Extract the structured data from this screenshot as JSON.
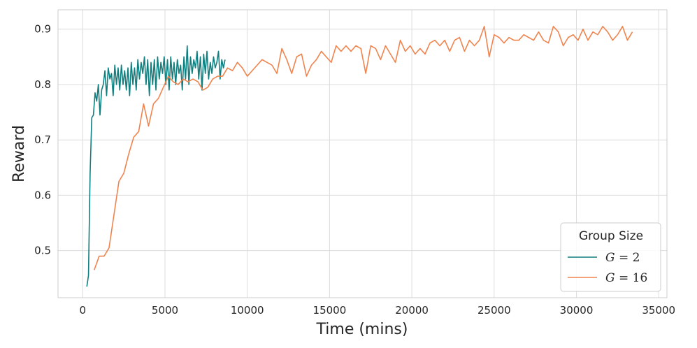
{
  "chart_data": {
    "type": "line",
    "title": "",
    "xlabel": "Time (mins)",
    "ylabel": "Reward",
    "xlim": [
      -1500,
      35500
    ],
    "ylim": [
      0.415,
      0.935
    ],
    "xticks": [
      0,
      5000,
      10000,
      15000,
      20000,
      25000,
      30000,
      35000
    ],
    "xtick_labels": [
      "0",
      "5000",
      "10000",
      "15000",
      "20000",
      "25000",
      "30000",
      "35000"
    ],
    "yticks": [
      0.5,
      0.6,
      0.7,
      0.8,
      0.9
    ],
    "ytick_labels": [
      "0.5",
      "0.6",
      "0.7",
      "0.8",
      "0.9"
    ],
    "grid": true,
    "legend": {
      "title": "Group Size",
      "placement": "lower-right",
      "entries": [
        {
          "var": "G",
          "eq": " = ",
          "num": "2"
        },
        {
          "var": "G",
          "eq": " = ",
          "num": "16"
        }
      ]
    },
    "series": [
      {
        "name": "G = 2",
        "color": "#0f7f7f",
        "x": [
          250,
          350,
          450,
          550,
          650,
          750,
          850,
          950,
          1050,
          1150,
          1250,
          1350,
          1450,
          1550,
          1650,
          1750,
          1850,
          1950,
          2050,
          2150,
          2250,
          2350,
          2450,
          2550,
          2650,
          2750,
          2850,
          2950,
          3050,
          3150,
          3250,
          3350,
          3450,
          3550,
          3650,
          3750,
          3850,
          3950,
          4050,
          4150,
          4250,
          4350,
          4450,
          4550,
          4650,
          4750,
          4850,
          4950,
          5050,
          5150,
          5250,
          5350,
          5450,
          5550,
          5650,
          5750,
          5850,
          5950,
          6050,
          6150,
          6250,
          6350,
          6450,
          6550,
          6650,
          6750,
          6850,
          6950,
          7050,
          7150,
          7250,
          7350,
          7450,
          7550,
          7650,
          7750,
          7850,
          7950,
          8050,
          8150,
          8250,
          8350,
          8450,
          8550,
          8650
        ],
        "y": [
          0.435,
          0.455,
          0.64,
          0.74,
          0.745,
          0.785,
          0.77,
          0.8,
          0.745,
          0.79,
          0.8,
          0.825,
          0.78,
          0.83,
          0.81,
          0.82,
          0.78,
          0.835,
          0.8,
          0.83,
          0.79,
          0.835,
          0.8,
          0.825,
          0.79,
          0.83,
          0.78,
          0.84,
          0.8,
          0.83,
          0.79,
          0.845,
          0.81,
          0.84,
          0.82,
          0.85,
          0.8,
          0.845,
          0.78,
          0.84,
          0.8,
          0.845,
          0.79,
          0.85,
          0.81,
          0.84,
          0.82,
          0.85,
          0.8,
          0.845,
          0.79,
          0.85,
          0.81,
          0.84,
          0.8,
          0.845,
          0.82,
          0.835,
          0.79,
          0.85,
          0.81,
          0.87,
          0.8,
          0.85,
          0.82,
          0.845,
          0.83,
          0.86,
          0.81,
          0.85,
          0.79,
          0.855,
          0.82,
          0.86,
          0.81,
          0.84,
          0.82,
          0.85,
          0.83,
          0.84,
          0.86,
          0.81,
          0.845,
          0.83,
          0.845
        ]
      },
      {
        "name": "G = 16",
        "color": "#f0844f",
        "x": [
          700,
          1000,
          1300,
          1600,
          1900,
          2200,
          2500,
          2800,
          3100,
          3400,
          3700,
          4000,
          4300,
          4600,
          4900,
          5200,
          5500,
          5800,
          6100,
          6400,
          6700,
          7000,
          7300,
          7600,
          7900,
          8200,
          8500,
          8800,
          9100,
          9400,
          9700,
          10000,
          10300,
          10600,
          10900,
          11200,
          11500,
          11800,
          12100,
          12400,
          12700,
          13000,
          13300,
          13600,
          13900,
          14200,
          14500,
          14800,
          15100,
          15400,
          15700,
          16000,
          16300,
          16600,
          16900,
          17200,
          17500,
          17800,
          18100,
          18400,
          18700,
          19000,
          19300,
          19600,
          19900,
          20200,
          20500,
          20800,
          21100,
          21400,
          21700,
          22000,
          22300,
          22600,
          22900,
          23200,
          23500,
          23800,
          24100,
          24400,
          24700,
          25000,
          25300,
          25600,
          25900,
          26200,
          26500,
          26800,
          27100,
          27400,
          27700,
          28000,
          28300,
          28600,
          28900,
          29200,
          29500,
          29800,
          30100,
          30400,
          30700,
          31000,
          31300,
          31600,
          31900,
          32200,
          32500,
          32800,
          33100,
          33400
        ],
        "y": [
          0.465,
          0.49,
          0.49,
          0.505,
          0.565,
          0.625,
          0.64,
          0.675,
          0.705,
          0.715,
          0.765,
          0.725,
          0.765,
          0.775,
          0.795,
          0.815,
          0.805,
          0.8,
          0.81,
          0.805,
          0.81,
          0.805,
          0.79,
          0.795,
          0.81,
          0.815,
          0.815,
          0.83,
          0.825,
          0.84,
          0.83,
          0.815,
          0.825,
          0.835,
          0.845,
          0.84,
          0.835,
          0.82,
          0.865,
          0.845,
          0.82,
          0.85,
          0.855,
          0.815,
          0.835,
          0.845,
          0.86,
          0.85,
          0.84,
          0.87,
          0.86,
          0.87,
          0.86,
          0.87,
          0.865,
          0.82,
          0.87,
          0.865,
          0.845,
          0.87,
          0.855,
          0.84,
          0.88,
          0.86,
          0.87,
          0.855,
          0.865,
          0.855,
          0.875,
          0.88,
          0.87,
          0.88,
          0.86,
          0.88,
          0.885,
          0.86,
          0.88,
          0.87,
          0.88,
          0.905,
          0.85,
          0.89,
          0.885,
          0.875,
          0.885,
          0.88,
          0.88,
          0.89,
          0.885,
          0.88,
          0.895,
          0.88,
          0.875,
          0.905,
          0.895,
          0.87,
          0.885,
          0.89,
          0.88,
          0.9,
          0.88,
          0.895,
          0.89,
          0.905,
          0.895,
          0.88,
          0.89,
          0.905,
          0.88,
          0.895
        ]
      }
    ]
  }
}
